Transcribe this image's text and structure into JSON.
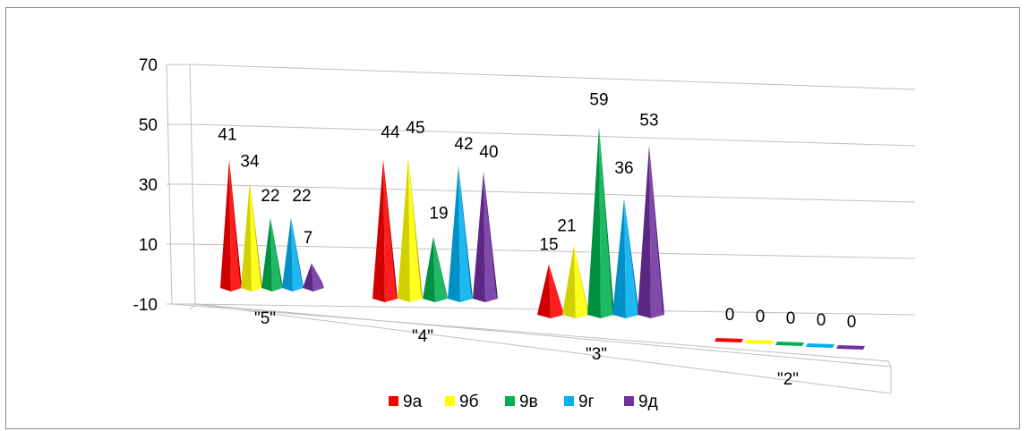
{
  "chart_data": {
    "type": "bar",
    "style": "3d-pyramid",
    "categories": [
      "\"5\"",
      "\"4\"",
      "\"3\"",
      "\"2\""
    ],
    "series": [
      {
        "name": "9а",
        "color": "#ff0000",
        "values": [
          41,
          44,
          15,
          0
        ]
      },
      {
        "name": "9б",
        "color": "#ffff00",
        "values": [
          34,
          45,
          21,
          0
        ]
      },
      {
        "name": "9в",
        "color": "#00b050",
        "values": [
          22,
          19,
          59,
          0
        ]
      },
      {
        "name": "9г",
        "color": "#00b0f0",
        "values": [
          22,
          42,
          36,
          0
        ]
      },
      {
        "name": "9д",
        "color": "#7030a0",
        "values": [
          7,
          40,
          53,
          0
        ]
      }
    ],
    "yticks": [
      "70",
      "50",
      "30",
      "10",
      "-10"
    ],
    "ylim": [
      -10,
      70
    ],
    "grid": true,
    "legend": "bottom"
  }
}
